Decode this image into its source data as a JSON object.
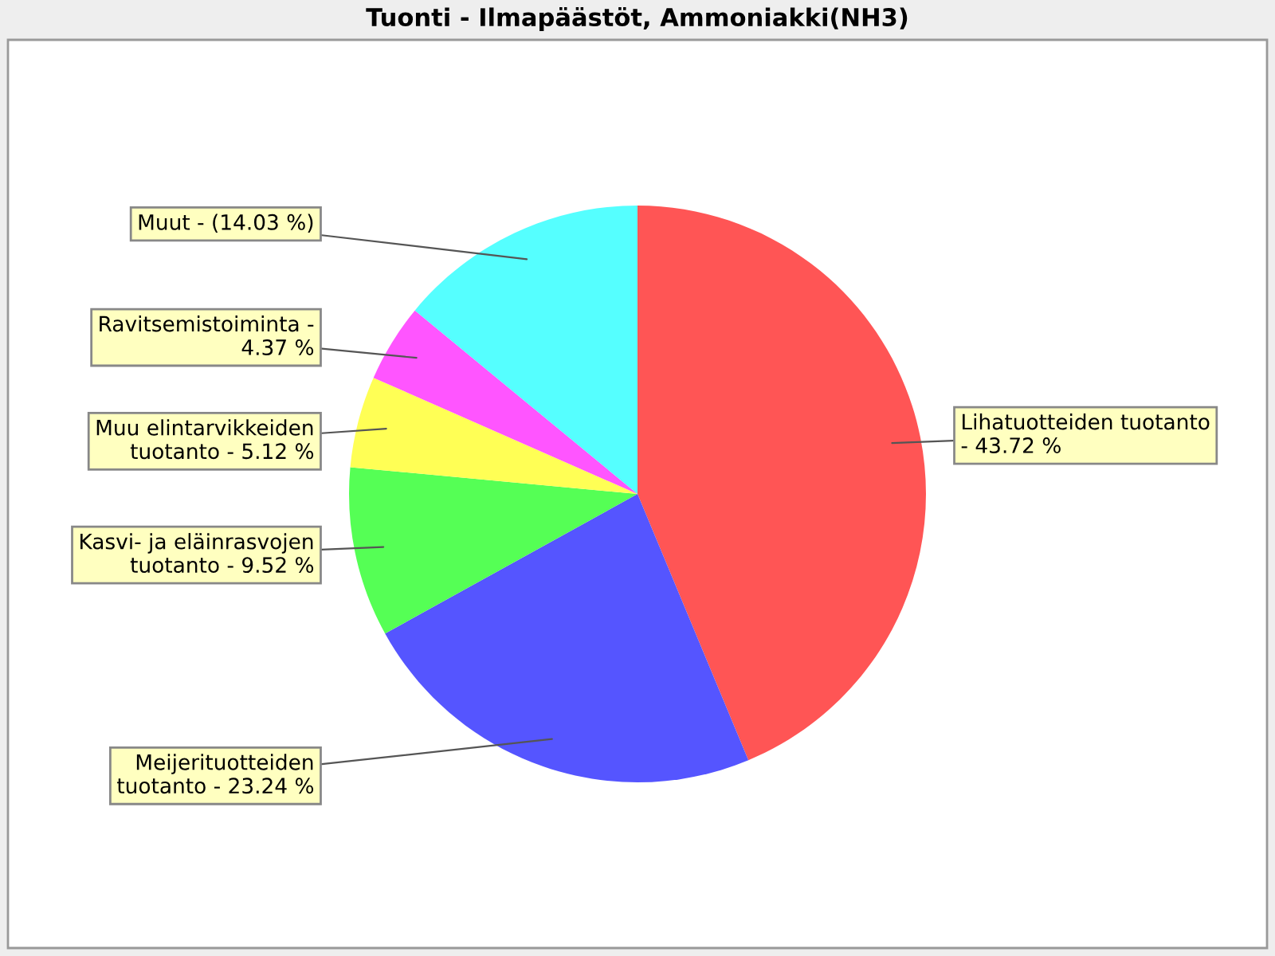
{
  "chart_data": {
    "type": "pie",
    "title": "Tuonti - Ilmapäästöt, Ammoniakki(NH3)",
    "categories": [
      "Lihatuotteiden tuotanto -",
      "Meijerituotteiden tuotanto -",
      "Kasvi- ja eläinrasvojen tuotanto -",
      "Muu elintarvikkeiden tuotanto -",
      "Ravitsemistoiminta -",
      "Muut -"
    ],
    "values": [
      43.72,
      23.24,
      9.52,
      5.12,
      4.37,
      14.03
    ],
    "colors": [
      "#ff5555",
      "#5555ff",
      "#55ff55",
      "#ffff55",
      "#ff55ff",
      "#55ffff"
    ],
    "value_labels": [
      "43.72 %",
      "23.24 %",
      "9.52 %",
      "5.12 %",
      "4.37 %",
      "(14.03 %)"
    ],
    "legend": false
  }
}
